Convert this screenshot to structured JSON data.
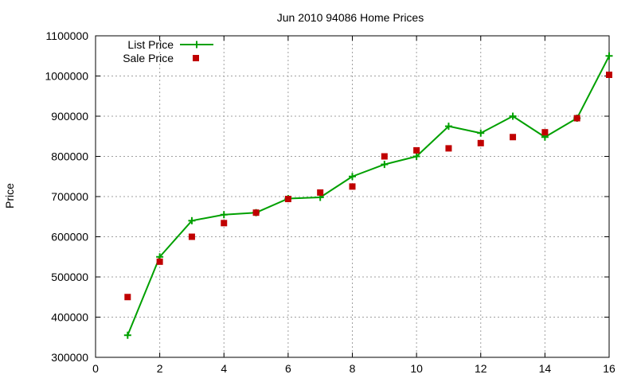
{
  "chart_data": {
    "type": "line",
    "title": "Jun 2010 94086 Home Prices",
    "xlabel": "",
    "ylabel": "Price",
    "xlim": [
      0,
      16
    ],
    "ylim": [
      300000,
      1100000
    ],
    "xticks": [
      0,
      2,
      4,
      6,
      8,
      10,
      12,
      14,
      16
    ],
    "yticks": [
      300000,
      400000,
      500000,
      600000,
      700000,
      800000,
      900000,
      1000000,
      1100000
    ],
    "grid": true,
    "legend_position": "top-left",
    "series": [
      {
        "name": "List Price",
        "style": "line-with-plus-markers",
        "color": "#00a000",
        "x": [
          1,
          2,
          3,
          4,
          5,
          6,
          7,
          8,
          9,
          10,
          11,
          12,
          13,
          14,
          15,
          16
        ],
        "values": [
          355000,
          550000,
          640000,
          655000,
          660000,
          695000,
          698000,
          750000,
          780000,
          800000,
          875000,
          858000,
          900000,
          848000,
          895000,
          1050000
        ]
      },
      {
        "name": "Sale Price",
        "style": "square-markers",
        "color": "#c00000",
        "x": [
          1,
          2,
          3,
          4,
          5,
          6,
          7,
          8,
          9,
          10,
          11,
          12,
          13,
          14,
          15,
          16
        ],
        "values": [
          450000,
          538000,
          600000,
          634000,
          660000,
          694000,
          710000,
          725000,
          800000,
          815000,
          820000,
          833000,
          848000,
          860000,
          895000,
          1003000
        ]
      }
    ]
  }
}
